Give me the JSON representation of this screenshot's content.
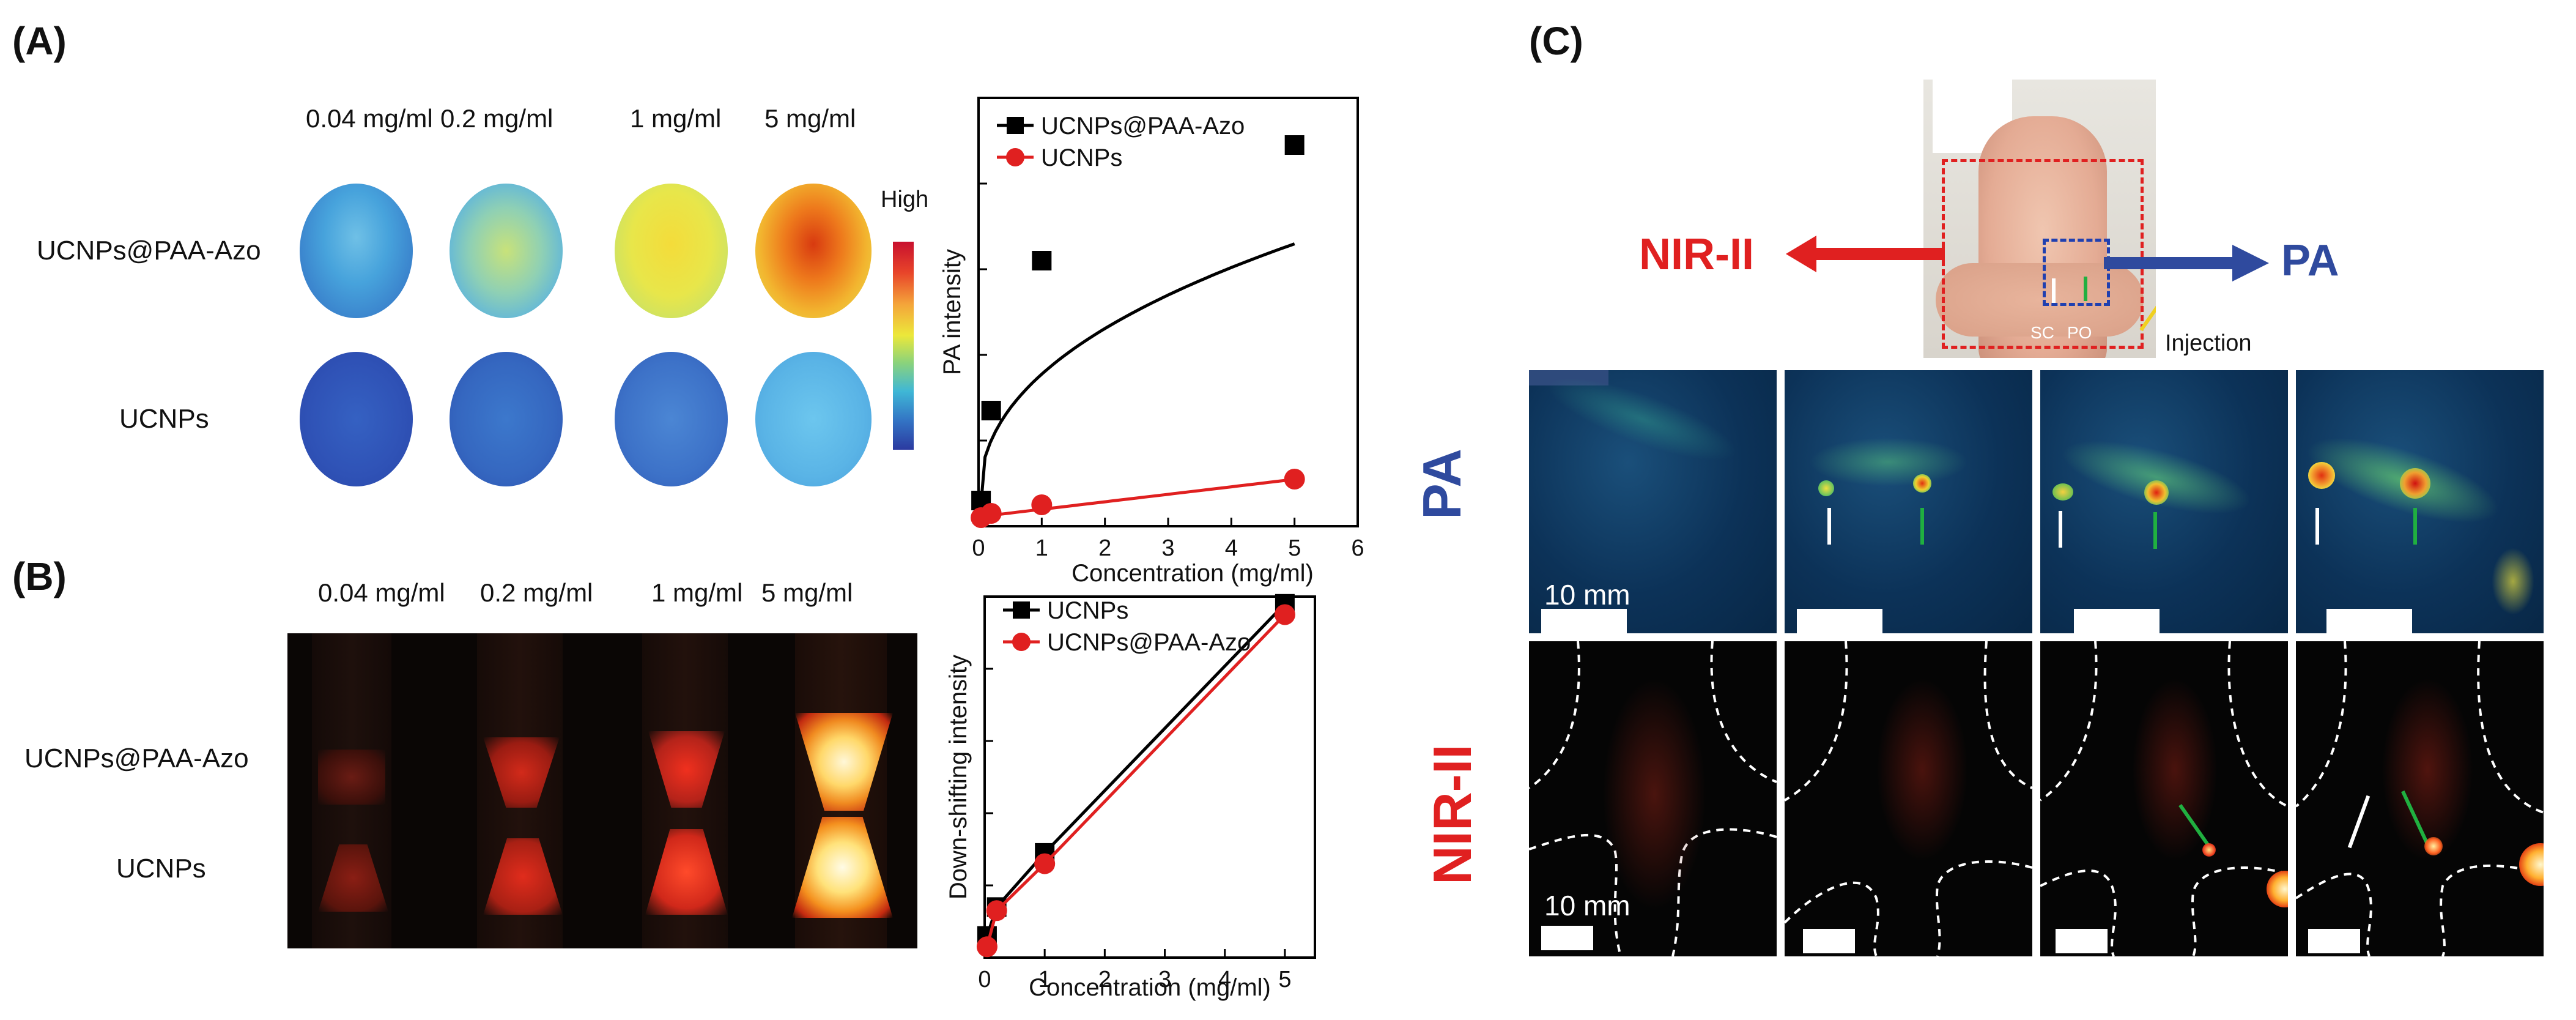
{
  "panels": {
    "a": "(A)",
    "b": "(B)",
    "c": "(C)"
  },
  "panel_a": {
    "concentrations": [
      "0.04 mg/ml",
      "0.2 mg/ml",
      "1 mg/ml",
      "5 mg/ml"
    ],
    "rows": [
      "UCNPs@PAA-Azo",
      "UCNPs"
    ],
    "colorbar_high": "High",
    "side_label": "PA"
  },
  "panel_b": {
    "concentrations": [
      "0.04 mg/ml",
      "0.2 mg/ml",
      "1 mg/ml",
      "5 mg/ml"
    ],
    "rows": [
      "UCNPs@PAA-Azo",
      "UCNPs"
    ],
    "side_label": "NIR-II"
  },
  "panel_c": {
    "nir_label": "NIR-II",
    "pa_label": "PA",
    "sc_label": "SC",
    "po_label": "PO",
    "injection_label": "Injection",
    "scale_pa": "10 mm",
    "scale_nir": "10 mm"
  },
  "colors": {
    "black_series": "#000000",
    "red_series": "#e02020",
    "pa_blue": "#2f4a9e",
    "nir_red": "#e02020"
  },
  "chart_data": [
    {
      "type": "scatter",
      "title": "",
      "xlabel": "Concentration (mg/ml)",
      "ylabel": "PA intensity",
      "xlim": [
        0,
        6
      ],
      "ylim": [
        0,
        100
      ],
      "xticks": [
        0,
        1,
        2,
        3,
        4,
        5,
        6
      ],
      "legend": "top-left",
      "series": [
        {
          "name": "UCNPs@PAA-Azo",
          "color": "#000000",
          "marker": "square",
          "x": [
            0.04,
            0.2,
            1,
            5
          ],
          "y": [
            6,
            27,
            62,
            89
          ]
        },
        {
          "name": "UCNPs",
          "color": "#e02020",
          "marker": "circle",
          "x": [
            0.04,
            0.2,
            1,
            5
          ],
          "y": [
            2,
            3,
            5,
            11
          ]
        }
      ]
    },
    {
      "type": "line",
      "title": "",
      "xlabel": "Concentration (mg/ml)",
      "ylabel": "Down-shifting intensity",
      "xlim": [
        0,
        5.5
      ],
      "ylim": [
        0,
        100
      ],
      "xticks": [
        0,
        1,
        2,
        3,
        4,
        5
      ],
      "legend": "top-left",
      "series": [
        {
          "name": "UCNPs",
          "color": "#000000",
          "marker": "square",
          "x": [
            0.04,
            0.2,
            1,
            5
          ],
          "y": [
            6,
            14,
            29,
            98
          ]
        },
        {
          "name": "UCNPs@PAA-Azo",
          "color": "#e02020",
          "marker": "circle",
          "x": [
            0.04,
            0.2,
            1,
            5
          ],
          "y": [
            3,
            13,
            26,
            95
          ]
        }
      ]
    }
  ]
}
